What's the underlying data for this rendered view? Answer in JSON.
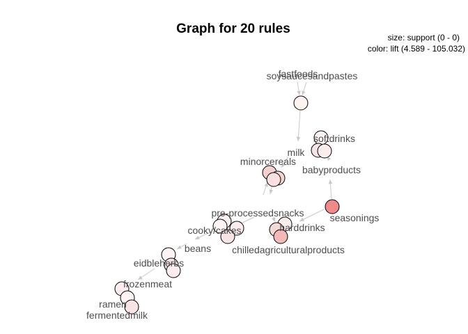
{
  "title": "Graph for 20 rules",
  "legend": {
    "size": "size: support (0 - 0)",
    "color": "color: lift (4.589 - 105.032)"
  },
  "labels": {
    "fastfoods": "fastfoods",
    "soysauces": "soysaucesandpastes",
    "softdrinks": "softdrinks",
    "milk": "milk",
    "minorcereals": "minorcereals",
    "babyproducts": "babyproducts",
    "preprocessed": "pre-processedsnacks",
    "seasonings": "seasonings",
    "harddrinks": "harddrinks",
    "cookycakes": "cooky/cakes",
    "chilled": "chilledagriculturalproducts",
    "beans": "beans",
    "eidbleherbs": "eidbleherbs",
    "frozenmeat": "frozenmeat",
    "ramen": "ramen",
    "fermentedmilk": "fermentedmilk"
  },
  "colors": {
    "edge": "#c8c8c8",
    "label": "#4d4d4d",
    "node_low": "#fdf3f3",
    "node_mid": "#f6d2d2",
    "node_high": "#f08a8a"
  }
}
